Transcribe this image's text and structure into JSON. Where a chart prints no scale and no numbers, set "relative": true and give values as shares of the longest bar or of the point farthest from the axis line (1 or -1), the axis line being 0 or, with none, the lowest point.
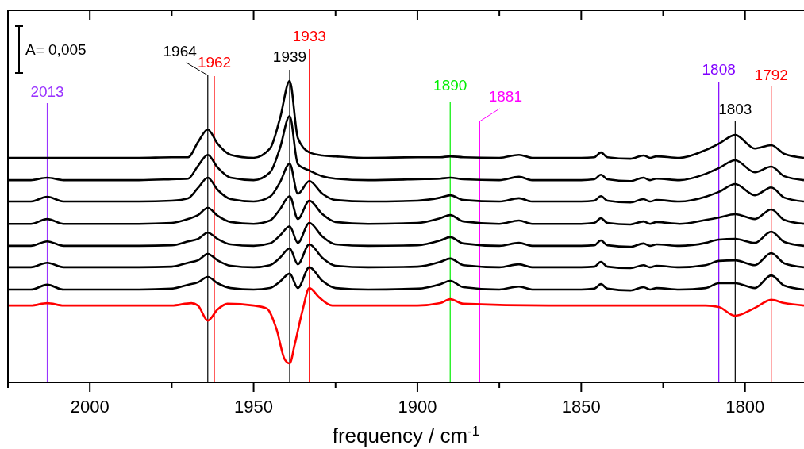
{
  "chart_data": {
    "type": "line",
    "relative": true,
    "xlabel": "frequency / cm$^{-1}$",
    "tick_labels": "x",
    "line_style": "solid",
    "marker": "none",
    "xlim": [
      2025,
      1782
    ],
    "xticks": [
      {
        "value": 2025,
        "label": null
      },
      2000,
      {
        "value": 1975,
        "label": null
      },
      1950,
      {
        "value": 1925,
        "label": null
      },
      1900,
      {
        "value": 1875,
        "label": null
      },
      1850,
      {
        "value": 1825,
        "label": null
      },
      1800
    ],
    "x": [
      2025,
      2018,
      2013,
      2008,
      2000,
      1985,
      1975,
      1970,
      1967,
      1964,
      1961,
      1957,
      1950,
      1945,
      1942,
      1939,
      1936.5,
      1933,
      1929,
      1925,
      1915,
      1900,
      1893,
      1890,
      1886,
      1875,
      1869,
      1865,
      1850,
      1846,
      1844,
      1842,
      1835,
      1831,
      1829,
      1827,
      1820,
      1812,
      1808,
      1803,
      1797,
      1792,
      1788,
      1782
    ],
    "series": [
      {
        "color": "#000000",
        "values": [
          0.745,
          0.745,
          0.745,
          0.745,
          0.745,
          0.745,
          0.747,
          0.747,
          0.797,
          0.839,
          0.792,
          0.755,
          0.745,
          0.776,
          0.874,
          1.0,
          0.811,
          0.763,
          0.753,
          0.75,
          0.745,
          0.747,
          0.747,
          0.75,
          0.747,
          0.745,
          0.755,
          0.745,
          0.745,
          0.747,
          0.763,
          0.747,
          0.742,
          0.753,
          0.745,
          0.75,
          0.745,
          0.771,
          0.792,
          0.821,
          0.776,
          0.787,
          0.758,
          0.745
        ]
      },
      {
        "color": "#000000",
        "values": [
          0.671,
          0.671,
          0.679,
          0.671,
          0.671,
          0.671,
          0.674,
          0.676,
          0.718,
          0.755,
          0.713,
          0.679,
          0.671,
          0.697,
          0.776,
          0.884,
          0.724,
          0.703,
          0.684,
          0.676,
          0.671,
          0.674,
          0.676,
          0.679,
          0.674,
          0.671,
          0.682,
          0.671,
          0.671,
          0.674,
          0.689,
          0.674,
          0.668,
          0.679,
          0.671,
          0.676,
          0.671,
          0.692,
          0.711,
          0.737,
          0.697,
          0.716,
          0.684,
          0.671
        ]
      },
      {
        "color": "#000000",
        "values": [
          0.6,
          0.6,
          0.616,
          0.6,
          0.6,
          0.6,
          0.603,
          0.611,
          0.645,
          0.679,
          0.639,
          0.608,
          0.6,
          0.616,
          0.663,
          0.726,
          0.626,
          0.668,
          0.626,
          0.605,
          0.6,
          0.603,
          0.613,
          0.621,
          0.605,
          0.6,
          0.611,
          0.6,
          0.6,
          0.603,
          0.618,
          0.603,
          0.597,
          0.608,
          0.6,
          0.605,
          0.6,
          0.616,
          0.632,
          0.658,
          0.621,
          0.647,
          0.613,
          0.6
        ]
      },
      {
        "color": "#000000",
        "values": [
          0.526,
          0.526,
          0.542,
          0.526,
          0.526,
          0.526,
          0.529,
          0.542,
          0.555,
          0.579,
          0.553,
          0.532,
          0.526,
          0.537,
          0.574,
          0.618,
          0.542,
          0.603,
          0.558,
          0.532,
          0.526,
          0.529,
          0.545,
          0.555,
          0.534,
          0.526,
          0.537,
          0.526,
          0.526,
          0.529,
          0.545,
          0.529,
          0.524,
          0.534,
          0.526,
          0.532,
          0.526,
          0.539,
          0.547,
          0.558,
          0.542,
          0.574,
          0.539,
          0.526
        ]
      },
      {
        "color": "#000000",
        "values": [
          0.453,
          0.453,
          0.468,
          0.453,
          0.453,
          0.453,
          0.455,
          0.468,
          0.476,
          0.497,
          0.476,
          0.458,
          0.453,
          0.461,
          0.487,
          0.518,
          0.463,
          0.529,
          0.484,
          0.458,
          0.453,
          0.455,
          0.471,
          0.482,
          0.461,
          0.453,
          0.463,
          0.453,
          0.453,
          0.455,
          0.471,
          0.455,
          0.45,
          0.461,
          0.453,
          0.458,
          0.453,
          0.463,
          0.474,
          0.476,
          0.463,
          0.5,
          0.466,
          0.453
        ]
      },
      {
        "color": "#000000",
        "values": [
          0.382,
          0.382,
          0.397,
          0.382,
          0.382,
          0.382,
          0.384,
          0.397,
          0.405,
          0.426,
          0.405,
          0.387,
          0.382,
          0.389,
          0.413,
          0.445,
          0.392,
          0.458,
          0.413,
          0.387,
          0.382,
          0.384,
          0.4,
          0.411,
          0.389,
          0.382,
          0.392,
          0.382,
          0.382,
          0.384,
          0.4,
          0.384,
          0.379,
          0.389,
          0.382,
          0.387,
          0.382,
          0.389,
          0.403,
          0.405,
          0.389,
          0.429,
          0.395,
          0.382
        ]
      },
      {
        "color": "#000000",
        "values": [
          0.308,
          0.308,
          0.324,
          0.308,
          0.308,
          0.308,
          0.311,
          0.324,
          0.332,
          0.35,
          0.329,
          0.313,
          0.308,
          0.313,
          0.334,
          0.361,
          0.313,
          0.382,
          0.337,
          0.313,
          0.308,
          0.311,
          0.326,
          0.337,
          0.316,
          0.308,
          0.318,
          0.308,
          0.308,
          0.311,
          0.326,
          0.311,
          0.305,
          0.316,
          0.308,
          0.313,
          0.308,
          0.313,
          0.329,
          0.329,
          0.313,
          0.355,
          0.321,
          0.308
        ]
      },
      {
        "color": "#ff0000",
        "x": [
          2025,
          2018,
          2013,
          2008,
          1990,
          1975,
          1969,
          1967,
          1964,
          1961,
          1958,
          1950,
          1946,
          1943,
          1940.5,
          1939,
          1937.5,
          1935,
          1933,
          1930,
          1926,
          1900,
          1893,
          1890,
          1886,
          1860,
          1812,
          1808,
          1803,
          1797,
          1792,
          1788,
          1782
        ],
        "values": [
          0.255,
          0.255,
          0.263,
          0.255,
          0.255,
          0.255,
          0.263,
          0.255,
          0.205,
          0.242,
          0.261,
          0.255,
          0.245,
          0.176,
          0.076,
          0.063,
          0.124,
          0.242,
          0.313,
          0.282,
          0.255,
          0.255,
          0.263,
          0.276,
          0.261,
          0.255,
          0.255,
          0.25,
          0.221,
          0.247,
          0.274,
          0.263,
          0.255
        ]
      }
    ],
    "ref_lines": [
      {
        "axis": "x",
        "value": 2013,
        "label": "2013",
        "color": "#9933ff"
      },
      {
        "axis": "x",
        "value": 1964,
        "label": "1964",
        "color": "#000000"
      },
      {
        "axis": "x",
        "value": 1962,
        "label": "1962",
        "color": "#ff0000"
      },
      {
        "axis": "x",
        "value": 1939,
        "label": "1939",
        "color": "#000000"
      },
      {
        "axis": "x",
        "value": 1933,
        "label": "1933",
        "color": "#ff0000"
      },
      {
        "axis": "x",
        "value": 1890,
        "label": "1890",
        "color": "#00ee00"
      },
      {
        "axis": "x",
        "value": 1881,
        "label": "1881",
        "color": "#ff00ff"
      },
      {
        "axis": "x",
        "value": 1808,
        "label": "1808",
        "color": "#8000ff"
      },
      {
        "axis": "x",
        "value": 1803,
        "label": "1803",
        "color": "#000000"
      },
      {
        "axis": "x",
        "value": 1792,
        "label": "1792",
        "color": "#ff0000"
      }
    ],
    "annotations": [
      "A= 0,005"
    ]
  }
}
